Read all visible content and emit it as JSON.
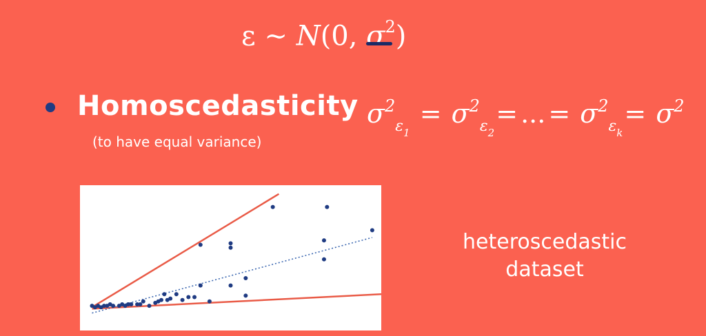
{
  "formula_top": {
    "eps": "ε",
    "tilde": " ~ ",
    "N": "N",
    "open": "(0, ",
    "sigma": "σ",
    "sup": "2",
    "close": ")"
  },
  "bullet_title": "Homoscedasticity",
  "bullet_subtitle": "(to have equal variance)",
  "equation": {
    "sigma": "σ",
    "sup": "2",
    "eps": "ε",
    "i1": "1",
    "i2": "2",
    "ik": "k",
    "eq": "=",
    "dots": "...",
    "rhs_sigma": "σ",
    "rhs_sup": "2"
  },
  "side_label": "heteroscedastic\ndataset",
  "colors": {
    "background": "#fb6150",
    "points": "#1f3b82",
    "bound_lines": "#e95a46",
    "trend_line": "#3a66b0",
    "underline": "#1a2a66"
  },
  "chart_data": {
    "type": "scatter",
    "title": "",
    "xlabel": "",
    "ylabel": "",
    "xlim": [
      0,
      100
    ],
    "ylim": [
      0,
      100
    ],
    "points": [
      [
        4,
        17
      ],
      [
        5,
        16
      ],
      [
        6,
        17
      ],
      [
        7,
        16
      ],
      [
        8,
        17
      ],
      [
        9,
        17
      ],
      [
        10,
        18
      ],
      [
        11,
        17
      ],
      [
        13,
        17
      ],
      [
        14,
        18
      ],
      [
        15,
        17
      ],
      [
        16,
        18
      ],
      [
        17,
        18
      ],
      [
        19,
        18
      ],
      [
        20,
        18
      ],
      [
        21,
        20
      ],
      [
        23,
        17
      ],
      [
        25,
        19
      ],
      [
        26,
        20
      ],
      [
        27,
        21
      ],
      [
        28,
        25
      ],
      [
        29,
        21
      ],
      [
        30,
        22
      ],
      [
        32,
        25
      ],
      [
        34,
        21
      ],
      [
        36,
        23
      ],
      [
        38,
        23
      ],
      [
        40,
        31
      ],
      [
        40,
        59
      ],
      [
        43,
        20
      ],
      [
        50,
        60
      ],
      [
        50,
        57
      ],
      [
        50,
        31
      ],
      [
        55,
        36
      ],
      [
        55,
        24
      ],
      [
        64,
        85
      ],
      [
        82,
        85
      ],
      [
        81,
        49
      ],
      [
        81,
        62
      ],
      [
        97,
        69
      ]
    ],
    "trend": {
      "from": [
        4,
        12
      ],
      "to": [
        97,
        64
      ]
    },
    "bounds": [
      {
        "from": [
          4,
          16
        ],
        "to": [
          66,
          94
        ]
      },
      {
        "from": [
          4,
          15
        ],
        "to": [
          100,
          25
        ]
      }
    ]
  }
}
